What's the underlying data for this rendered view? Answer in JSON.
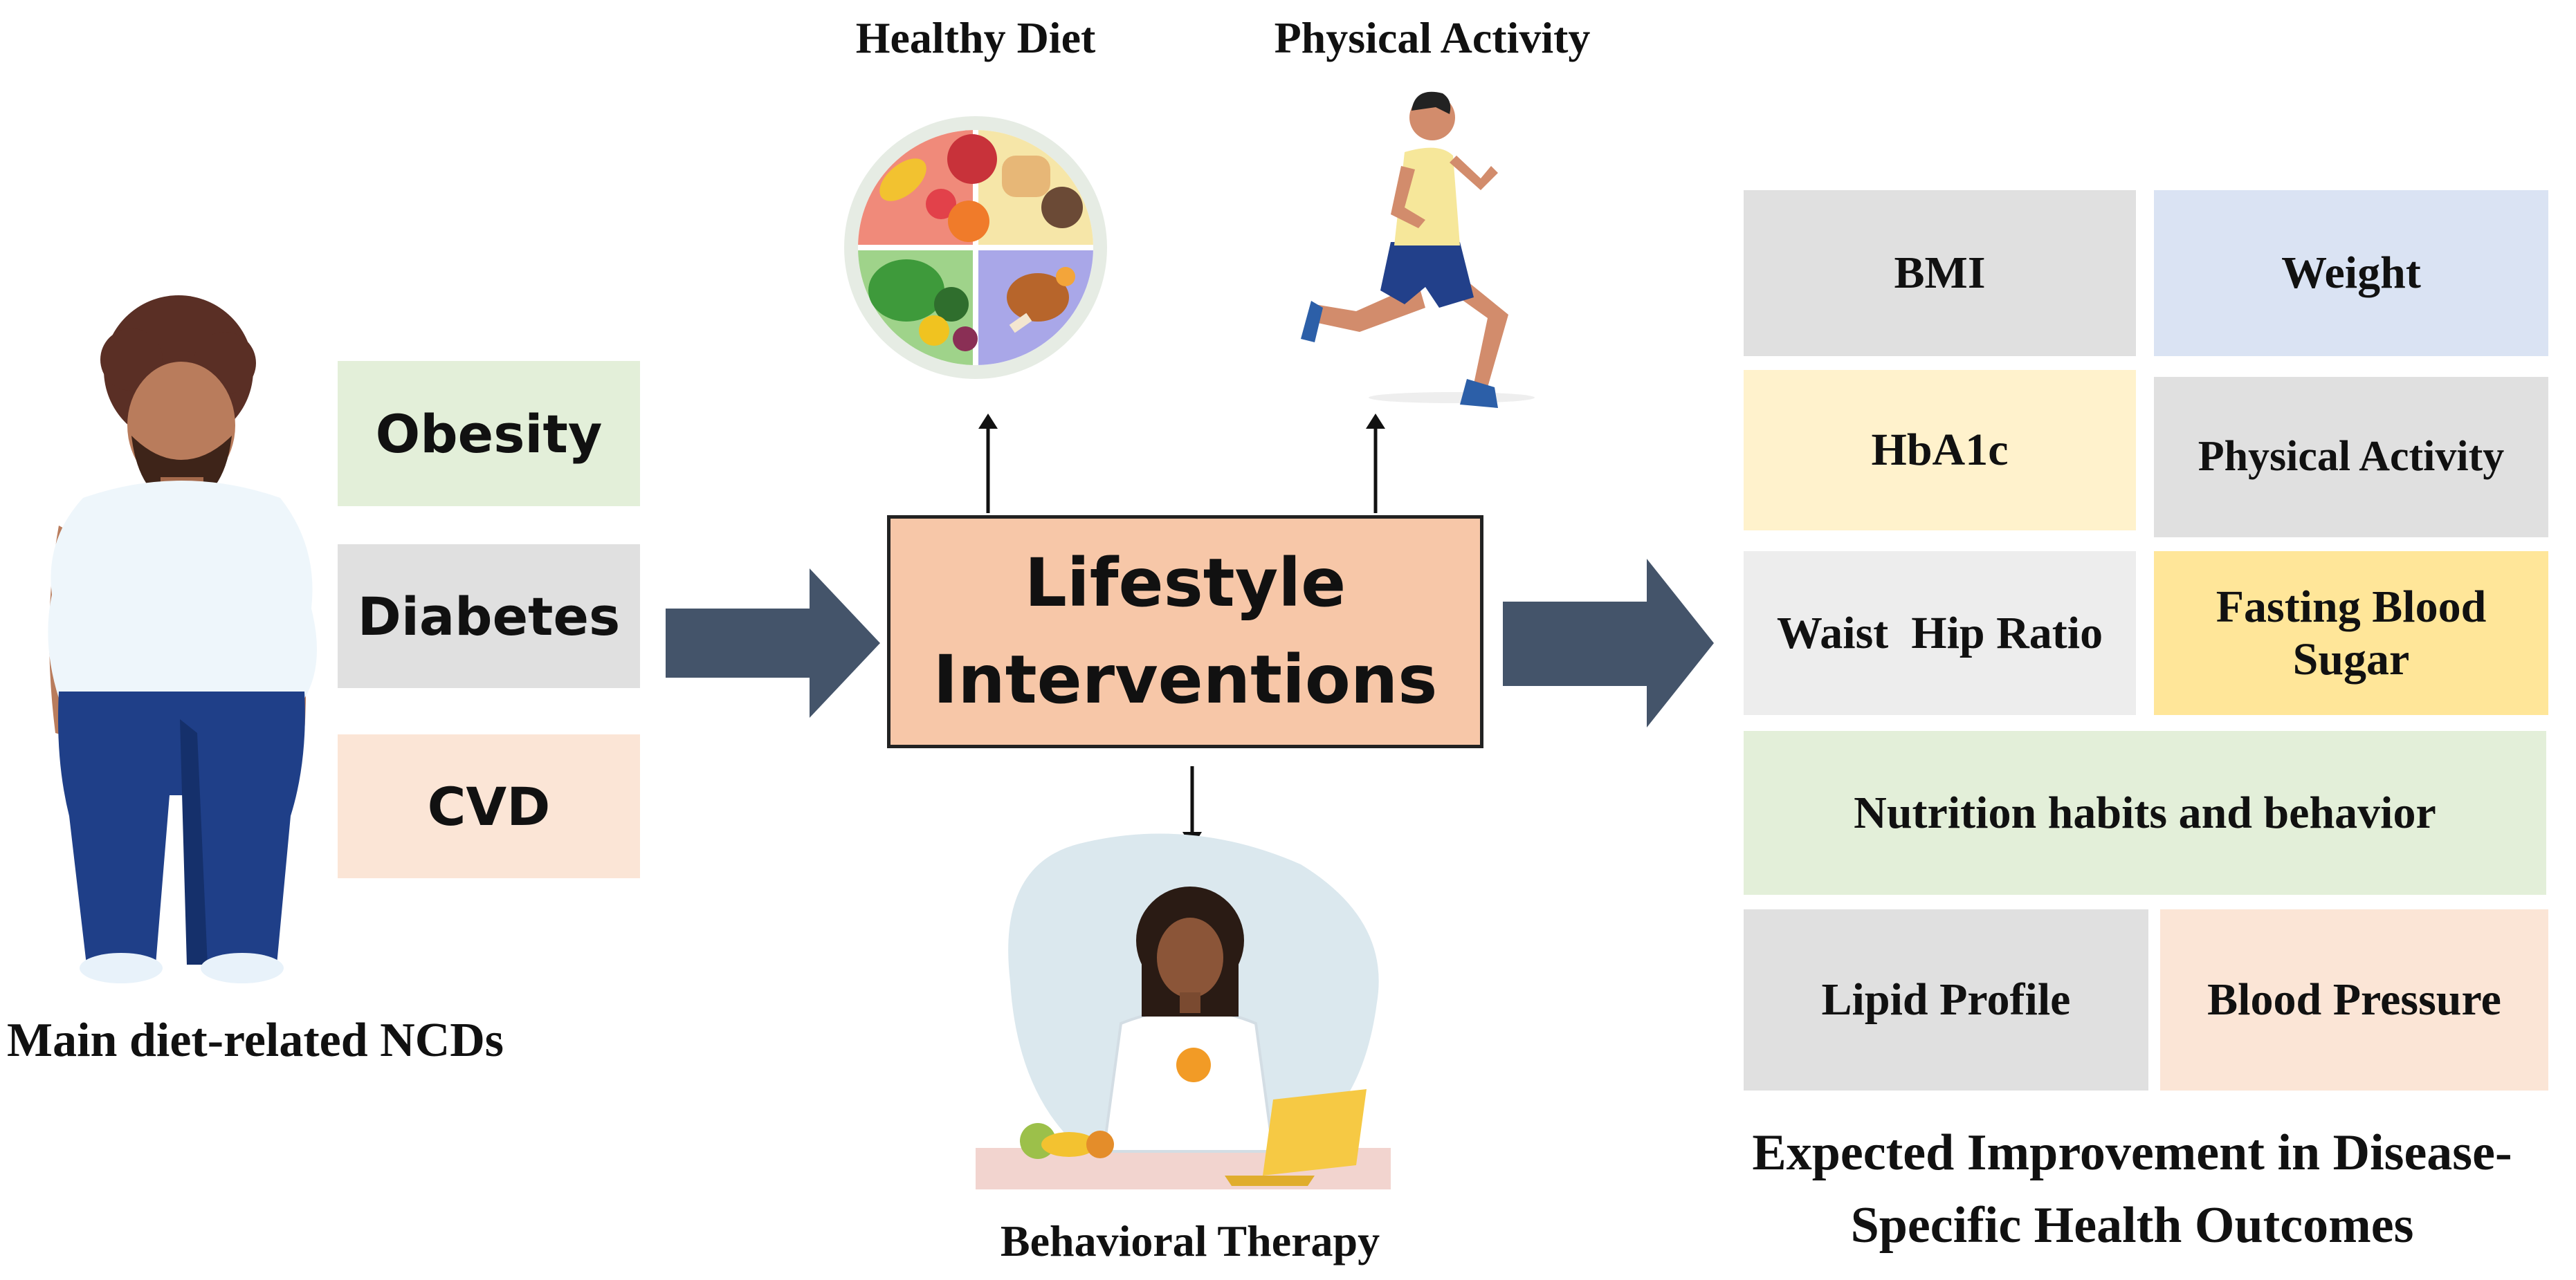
{
  "left": {
    "caption": "Main diet-related NCDs",
    "conditions": [
      "Obesity",
      "Diabetes",
      "CVD"
    ]
  },
  "center": {
    "title_line1": "Lifestyle",
    "title_line2": "Interventions",
    "healthy_diet": "Healthy Diet",
    "physical_activity": "Physical Activity",
    "behavioral_therapy": "Behavioral Therapy"
  },
  "right": {
    "outcomes": {
      "bmi": "BMI",
      "weight": "Weight",
      "hba1c": "HbA1c",
      "physical_activity": "Physical Activity",
      "waist_hip_ratio": "Waist  Hip Ratio",
      "fasting_blood_sugar": "Fasting Blood Sugar",
      "nutrition": "Nutrition habits and behavior",
      "lipid_profile": "Lipid Profile",
      "blood_pressure": "Blood Pressure"
    },
    "caption_line1": "Expected Improvement in Disease-",
    "caption_line2": "Specific Health Outcomes"
  },
  "colors": {
    "green": "#e3efd9",
    "gray": "#e0e0e0",
    "peach": "#fbe5d6",
    "blue": "#dae3f3",
    "yellow": "#fff2cc",
    "gold": "#ffe699",
    "arrow": "#44546a",
    "main_box": "#f7c7a8"
  }
}
